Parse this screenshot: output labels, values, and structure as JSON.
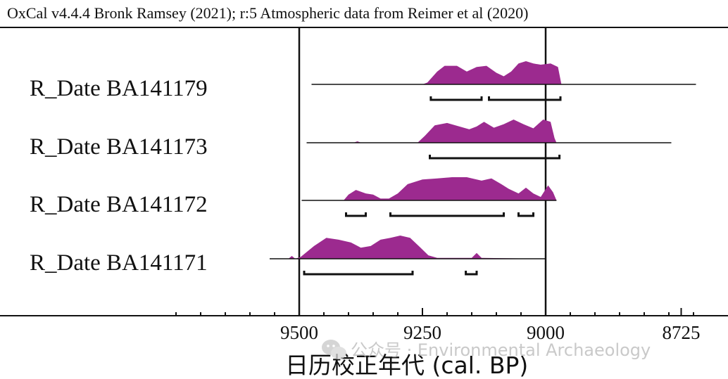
{
  "chart_data": {
    "type": "area",
    "title": "OxCal v4.4.4 Bronk Ramsey (2021); r:5 Atmospheric data from Reimer et al (2020)",
    "xlabel": "日历校正年代  (cal. BP)",
    "ylabel": "",
    "x_reversed": true,
    "xlim": [
      9750,
      8675
    ],
    "x_ticks": [
      9500,
      9250,
      9000,
      8725
    ],
    "reference_lines": [
      9500,
      9000
    ],
    "fill_color": "#9c2a8f",
    "series": [
      {
        "name": "R_Date BA141179",
        "range_line": [
          9475,
          8695
        ],
        "density": [
          [
            9475,
            0
          ],
          [
            9250,
            0
          ],
          [
            9240,
            0.08
          ],
          [
            9220,
            0.55
          ],
          [
            9205,
            0.8
          ],
          [
            9180,
            0.8
          ],
          [
            9160,
            0.55
          ],
          [
            9140,
            0.75
          ],
          [
            9120,
            0.8
          ],
          [
            9100,
            0.5
          ],
          [
            9085,
            0.35
          ],
          [
            9070,
            0.55
          ],
          [
            9055,
            0.9
          ],
          [
            9040,
            1.0
          ],
          [
            9025,
            0.9
          ],
          [
            9010,
            0.85
          ],
          [
            8990,
            0.9
          ],
          [
            8975,
            0.75
          ],
          [
            8968,
            0
          ],
          [
            8695,
            0
          ]
        ],
        "hpd_ranges": [
          [
            9233,
            9130
          ],
          [
            9115,
            8970
          ]
        ]
      },
      {
        "name": "R_Date BA141173",
        "range_line": [
          9485,
          8745
        ],
        "density": [
          [
            9485,
            0
          ],
          [
            9390,
            0
          ],
          [
            9382,
            0.06
          ],
          [
            9374,
            0
          ],
          [
            9260,
            0
          ],
          [
            9245,
            0.3
          ],
          [
            9225,
            0.75
          ],
          [
            9200,
            0.85
          ],
          [
            9175,
            0.7
          ],
          [
            9155,
            0.58
          ],
          [
            9140,
            0.7
          ],
          [
            9125,
            0.9
          ],
          [
            9105,
            0.65
          ],
          [
            9085,
            0.8
          ],
          [
            9065,
            1.0
          ],
          [
            9045,
            0.8
          ],
          [
            9025,
            0.62
          ],
          [
            9005,
            1.0
          ],
          [
            8990,
            0.9
          ],
          [
            8982,
            0.2
          ],
          [
            8978,
            0
          ],
          [
            8745,
            0
          ]
        ],
        "hpd_ranges": [
          [
            9235,
            8972
          ]
        ]
      },
      {
        "name": "R_Date BA141172",
        "range_line": [
          9495,
          8978
        ],
        "density": [
          [
            9495,
            0
          ],
          [
            9410,
            0
          ],
          [
            9400,
            0.25
          ],
          [
            9385,
            0.45
          ],
          [
            9365,
            0.3
          ],
          [
            9350,
            0.25
          ],
          [
            9335,
            0.08
          ],
          [
            9318,
            0.08
          ],
          [
            9300,
            0.3
          ],
          [
            9280,
            0.7
          ],
          [
            9250,
            0.9
          ],
          [
            9220,
            0.95
          ],
          [
            9190,
            1.0
          ],
          [
            9160,
            1.0
          ],
          [
            9130,
            0.85
          ],
          [
            9110,
            0.95
          ],
          [
            9090,
            0.7
          ],
          [
            9075,
            0.5
          ],
          [
            9055,
            0.3
          ],
          [
            9040,
            0.55
          ],
          [
            9025,
            0.3
          ],
          [
            9010,
            0.15
          ],
          [
            8995,
            0.65
          ],
          [
            8985,
            0.35
          ],
          [
            8978,
            0
          ]
        ],
        "hpd_ranges": [
          [
            9405,
            9365
          ],
          [
            9315,
            9085
          ],
          [
            9055,
            9025
          ]
        ]
      },
      {
        "name": "R_Date BA141171",
        "range_line": [
          9560,
          9000
        ],
        "density": [
          [
            9560,
            0
          ],
          [
            9522,
            0
          ],
          [
            9515,
            0.12
          ],
          [
            9508,
            0
          ],
          [
            9497,
            0.08
          ],
          [
            9470,
            0.55
          ],
          [
            9445,
            0.9
          ],
          [
            9420,
            0.82
          ],
          [
            9395,
            0.7
          ],
          [
            9375,
            0.48
          ],
          [
            9355,
            0.55
          ],
          [
            9335,
            0.82
          ],
          [
            9315,
            0.9
          ],
          [
            9295,
            1.0
          ],
          [
            9275,
            0.9
          ],
          [
            9255,
            0.5
          ],
          [
            9238,
            0.15
          ],
          [
            9220,
            0.04
          ],
          [
            9150,
            0.04
          ],
          [
            9140,
            0.25
          ],
          [
            9130,
            0.04
          ],
          [
            9000,
            0
          ]
        ],
        "hpd_ranges": [
          [
            9490,
            9270
          ],
          [
            9162,
            9140
          ]
        ]
      }
    ]
  },
  "watermark": {
    "icon": "wechat-icon",
    "text": "公众号 · Environmental Archaeology"
  }
}
